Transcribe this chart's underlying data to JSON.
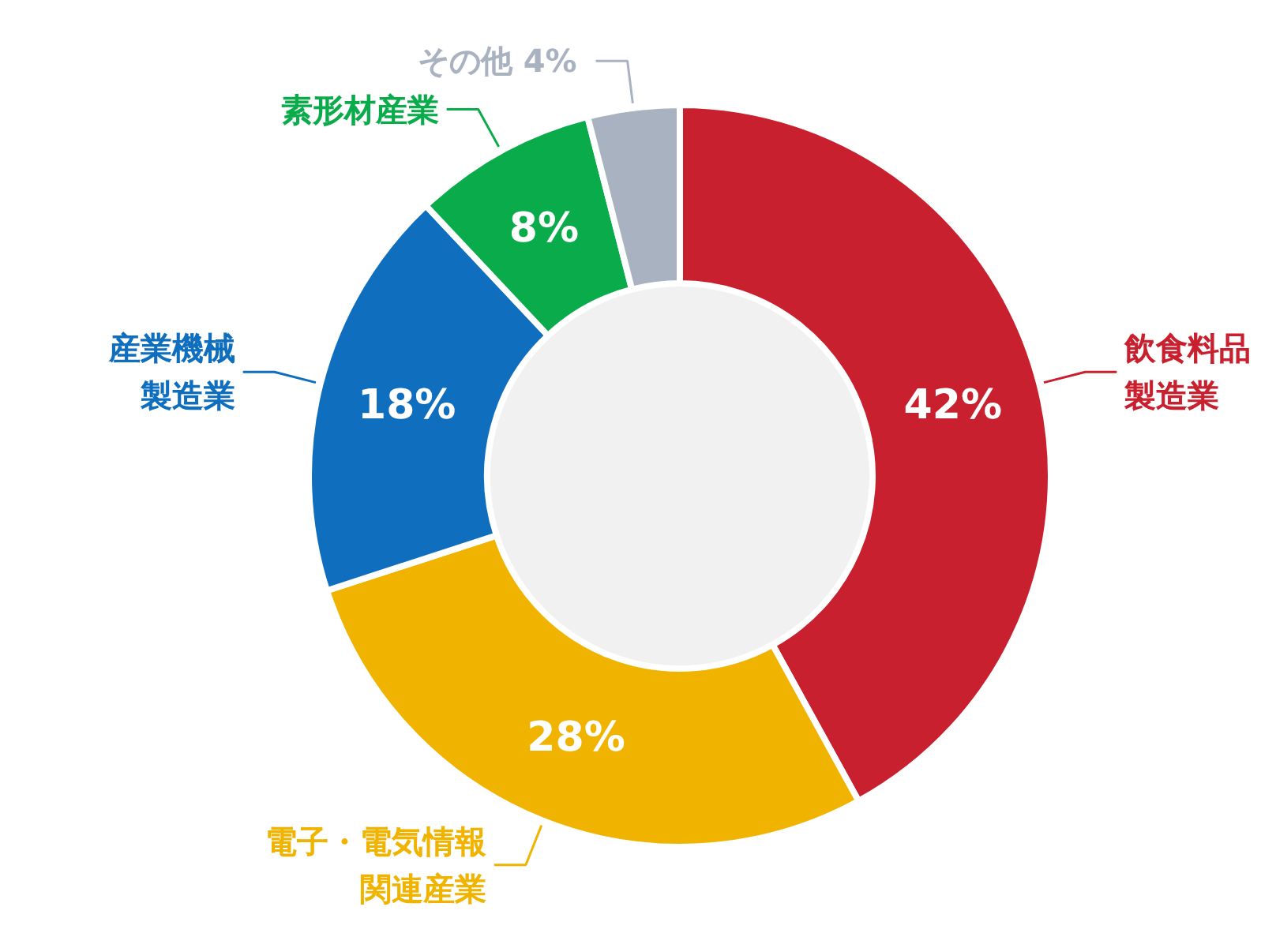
{
  "chart_data": {
    "type": "donut",
    "categories": [
      "飲食料品製造業",
      "電子・電気情報関連産業",
      "産業機械製造業",
      "素形材産業",
      "その他"
    ],
    "values": [
      42,
      28,
      18,
      8,
      4
    ],
    "value_labels": [
      "42%",
      "28%",
      "18%",
      "8%",
      "4%"
    ],
    "colors": [
      "#c8202e",
      "#f0b400",
      "#0f6fbe",
      "#0aab4a",
      "#a8b2c0"
    ]
  }
}
